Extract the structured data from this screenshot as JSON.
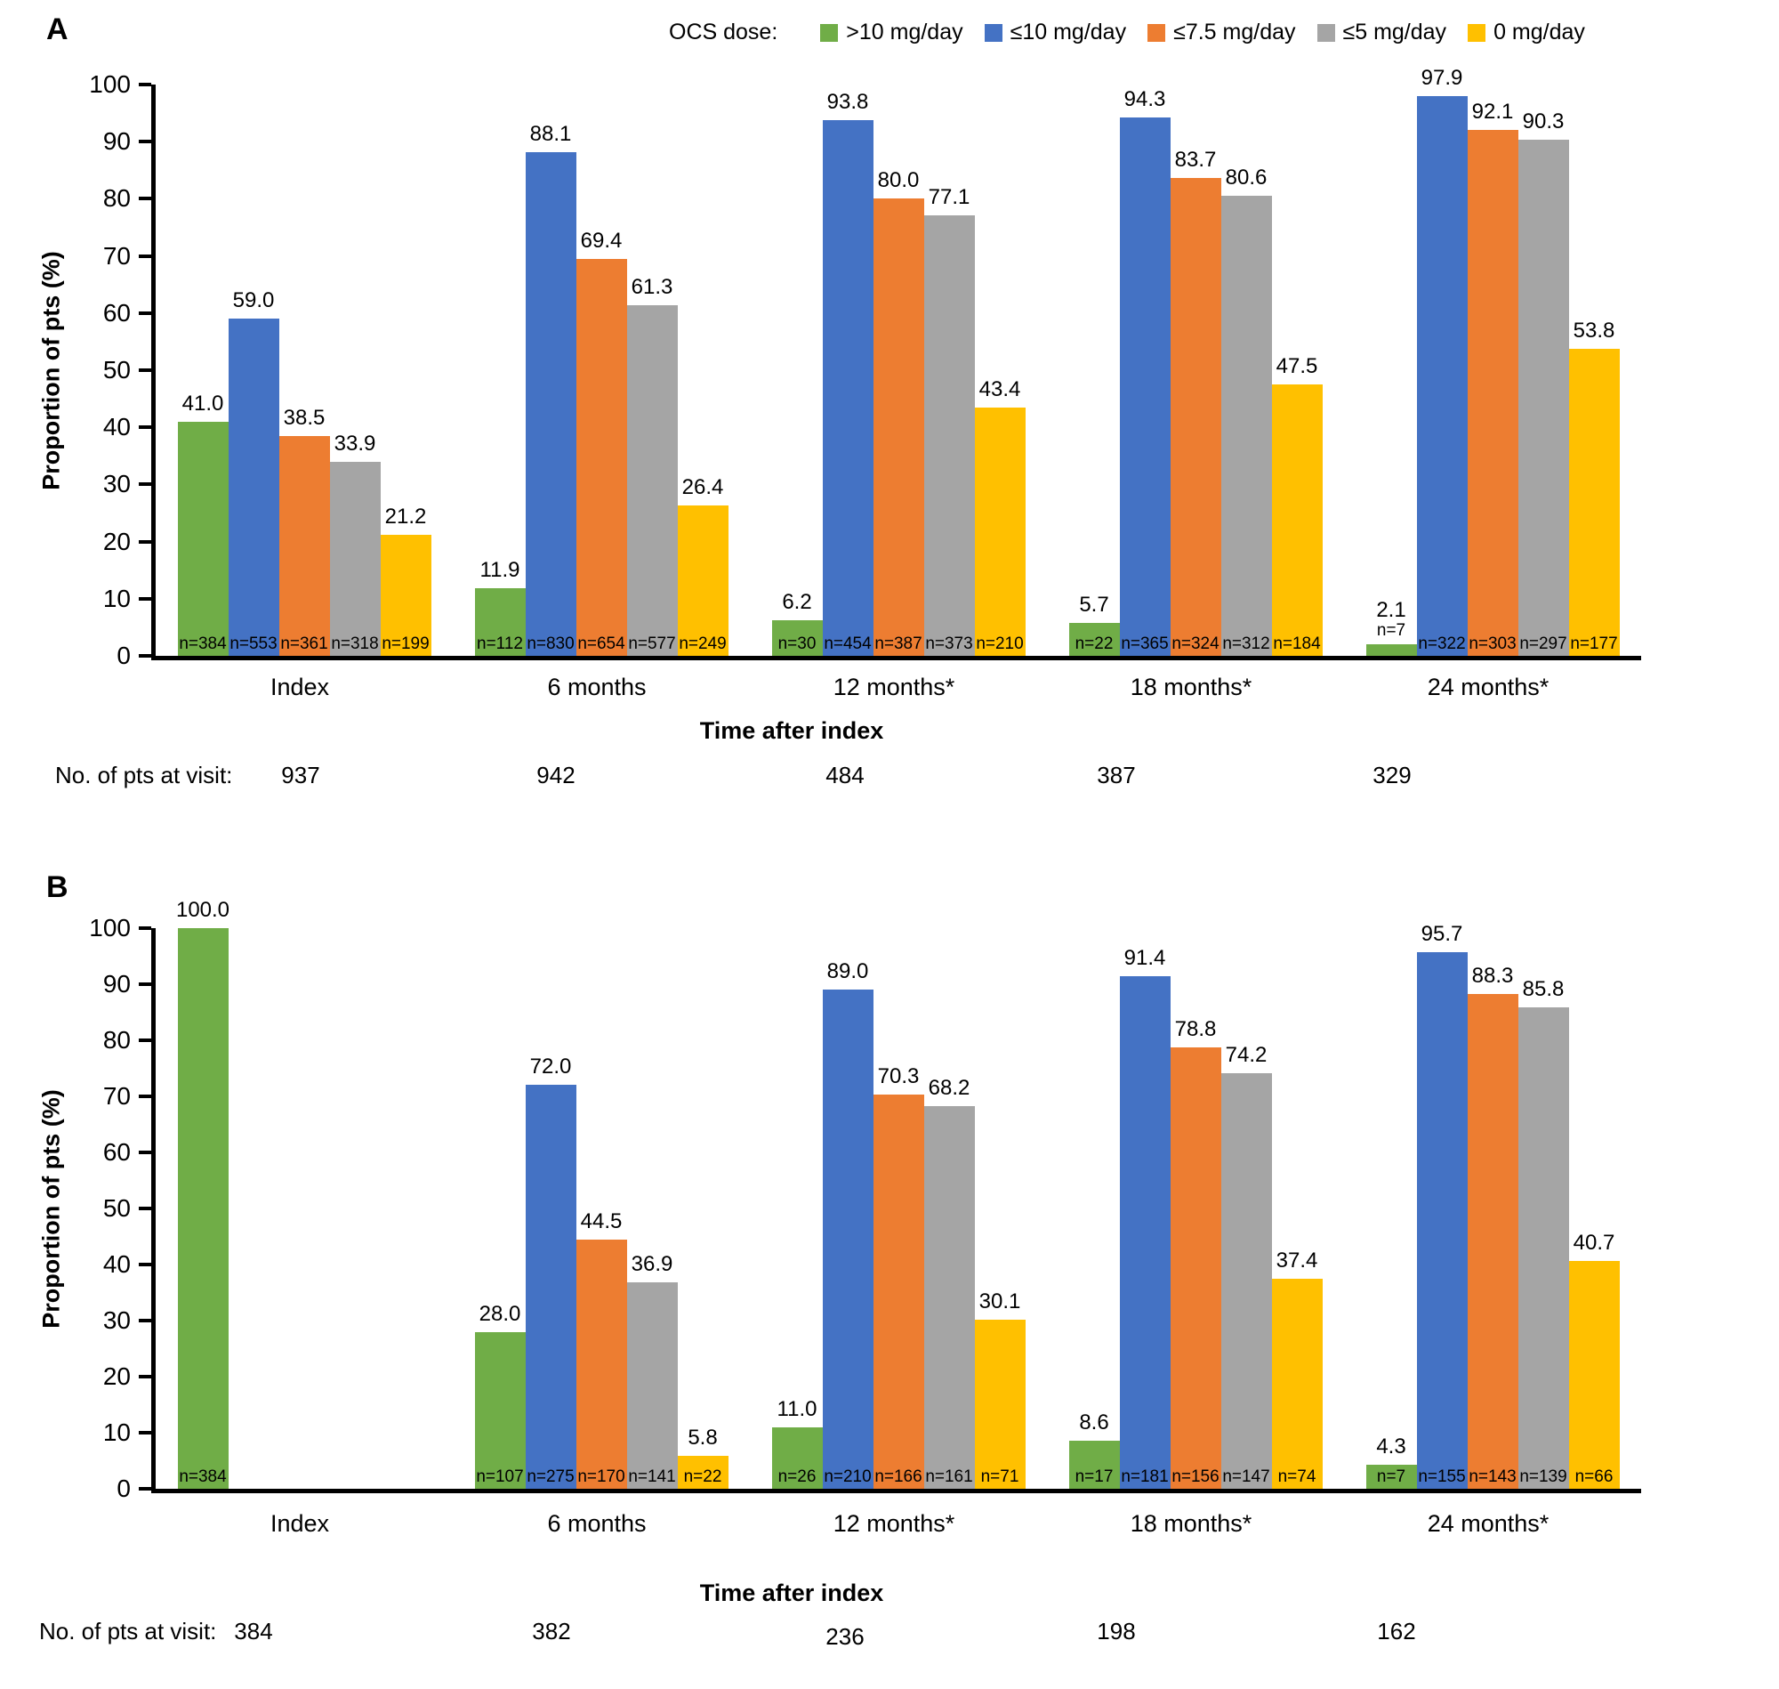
{
  "legend": {
    "title": "OCS dose:",
    "items": [
      {
        "label": ">10 mg/day",
        "color": "#70AD47"
      },
      {
        "label": "≤10 mg/day",
        "color": "#4472C4"
      },
      {
        "label": "≤7.5 mg/day",
        "color": "#ED7D31"
      },
      {
        "label": "≤5 mg/day",
        "color": "#A5A5A5"
      },
      {
        "label": "0 mg/day",
        "color": "#FFC000"
      }
    ]
  },
  "chart_data": [
    {
      "type": "bar",
      "panel_label": "A",
      "ylabel": "Proportion of pts (%)",
      "xlabel": "Time after index",
      "ylim": [
        0,
        100
      ],
      "ytick_step": 10,
      "grid": false,
      "legend_position": "top",
      "categories": [
        "Index",
        "6 months",
        "12 months*",
        "18 months*",
        "24 months*"
      ],
      "series": [
        {
          "name": ">10 mg/day",
          "color": "#70AD47",
          "values": [
            41.0,
            11.9,
            6.2,
            5.7,
            2.1
          ],
          "value_labels": [
            "41.0",
            "11.9",
            "6.2",
            "5.7",
            "2.1"
          ],
          "n_labels": [
            "n=384",
            "n=112",
            "n=30",
            "n=22",
            "n=7"
          ]
        },
        {
          "name": "≤10 mg/day",
          "color": "#4472C4",
          "values": [
            59.0,
            88.1,
            93.8,
            94.3,
            97.9
          ],
          "value_labels": [
            "59.0",
            "88.1",
            "93.8",
            "94.3",
            "97.9"
          ],
          "n_labels": [
            "n=553",
            "n=830",
            "n=454",
            "n=365",
            "n=322"
          ]
        },
        {
          "name": "≤7.5 mg/day",
          "color": "#ED7D31",
          "values": [
            38.5,
            69.4,
            80.0,
            83.7,
            92.1
          ],
          "value_labels": [
            "38.5",
            "69.4",
            "80.0",
            "83.7",
            "92.1"
          ],
          "n_labels": [
            "n=361",
            "n=654",
            "n=387",
            "n=324",
            "n=303"
          ]
        },
        {
          "name": "≤5 mg/day",
          "color": "#A5A5A5",
          "values": [
            33.9,
            61.3,
            77.1,
            80.6,
            90.3
          ],
          "value_labels": [
            "33.9",
            "61.3",
            "77.1",
            "80.6",
            "90.3"
          ],
          "n_labels": [
            "n=318",
            "n=577",
            "n=373",
            "n=312",
            "n=297"
          ]
        },
        {
          "name": "0 mg/day",
          "color": "#FFC000",
          "values": [
            21.2,
            26.4,
            43.4,
            47.5,
            53.8
          ],
          "value_labels": [
            "21.2",
            "26.4",
            "43.4",
            "47.5",
            "53.8"
          ],
          "n_labels": [
            "n=199",
            "n=249",
            "n=210",
            "n=184",
            "n=177"
          ]
        }
      ],
      "pts_at_visit": {
        "label": "No. of pts at visit:",
        "values": [
          "937",
          "942",
          "484",
          "387",
          "329"
        ]
      }
    },
    {
      "type": "bar",
      "panel_label": "B",
      "ylabel": "Proportion of pts (%)",
      "xlabel": "Time after index",
      "ylim": [
        0,
        100
      ],
      "ytick_step": 10,
      "grid": false,
      "legend_position": "none",
      "categories": [
        "Index",
        "6 months",
        "12 months*",
        "18 months*",
        "24 months*"
      ],
      "series": [
        {
          "name": ">10 mg/day",
          "color": "#70AD47",
          "values": [
            100.0,
            28.0,
            11.0,
            8.6,
            4.3
          ],
          "value_labels": [
            "100.0",
            "28.0",
            "11.0",
            "8.6",
            "4.3"
          ],
          "n_labels": [
            "n=384",
            "n=107",
            "n=26",
            "n=17",
            "n=7"
          ]
        },
        {
          "name": "≤10 mg/day",
          "color": "#4472C4",
          "values": [
            null,
            72.0,
            89.0,
            91.4,
            95.7
          ],
          "value_labels": [
            null,
            "72.0",
            "89.0",
            "91.4",
            "95.7"
          ],
          "n_labels": [
            null,
            "n=275",
            "n=210",
            "n=181",
            "n=155"
          ]
        },
        {
          "name": "≤7.5 mg/day",
          "color": "#ED7D31",
          "values": [
            null,
            44.5,
            70.3,
            78.8,
            88.3
          ],
          "value_labels": [
            null,
            "44.5",
            "70.3",
            "78.8",
            "88.3"
          ],
          "n_labels": [
            null,
            "n=170",
            "n=166",
            "n=156",
            "n=143"
          ]
        },
        {
          "name": "≤5 mg/day",
          "color": "#A5A5A5",
          "values": [
            null,
            36.9,
            68.2,
            74.2,
            85.8
          ],
          "value_labels": [
            null,
            "36.9",
            "68.2",
            "74.2",
            "85.8"
          ],
          "n_labels": [
            null,
            "n=141",
            "n=161",
            "n=147",
            "n=139"
          ]
        },
        {
          "name": "0 mg/day",
          "color": "#FFC000",
          "values": [
            null,
            5.8,
            30.1,
            37.4,
            40.7
          ],
          "value_labels": [
            null,
            "5.8",
            "30.1",
            "37.4",
            "40.7"
          ],
          "n_labels": [
            null,
            "n=22",
            "n=71",
            "n=74",
            "n=66"
          ]
        }
      ],
      "pts_at_visit": {
        "label": "No. of pts at visit:",
        "values": [
          "384",
          "382",
          "236",
          "198",
          "162"
        ]
      }
    }
  ]
}
